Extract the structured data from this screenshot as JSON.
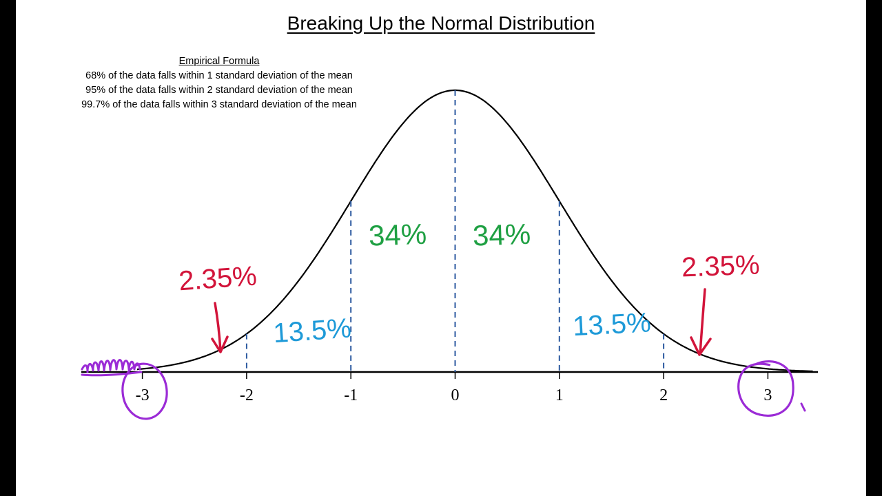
{
  "title": "Breaking Up the Normal Distribution",
  "empirical": {
    "heading": "Empirical Formula",
    "lines": [
      "68% of the data falls within 1 standard deviation of the mean",
      "95% of the data falls within 2 standard deviation of the mean",
      "99.7% of the data falls within 3 standard deviation of the mean"
    ]
  },
  "axis": {
    "ticks": [
      "-3",
      "-2",
      "-1",
      "0",
      "1",
      "2",
      "3"
    ]
  },
  "annotations": {
    "center_left": "34%",
    "center_right": "34%",
    "mid_left": "13.5%",
    "mid_right": "13.5%",
    "tail_left": "2.35%",
    "tail_right": "2.35%"
  },
  "colors": {
    "green": "#1fa043",
    "blue": "#1e9ad8",
    "red": "#d2143a",
    "purple": "#9b2bd6",
    "dash": "#2c5aa0"
  }
}
